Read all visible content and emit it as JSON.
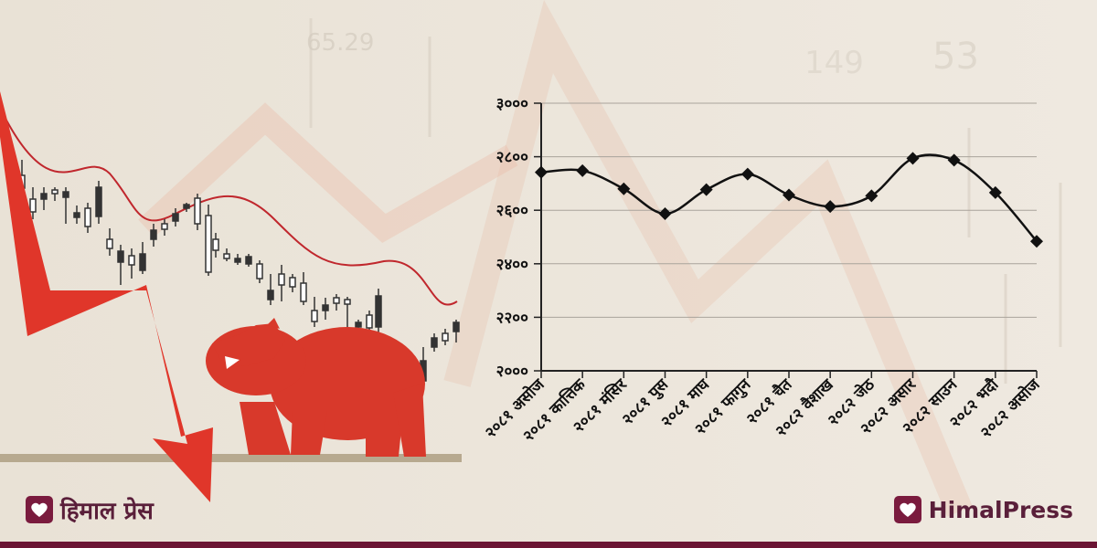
{
  "brand": {
    "left_text": "हिमाल प्रेस",
    "right_text": "HimalPress"
  },
  "colors": {
    "accent": "#6b1534",
    "arrow": "#e0362a",
    "bear": "#d8392b",
    "line": "#111111"
  },
  "illustration": {
    "icons": [
      "red-down-arrow",
      "bear",
      "candlestick-bars",
      "moving-average-line"
    ]
  },
  "chart_data": {
    "type": "line",
    "title": "",
    "xlabel": "",
    "ylabel": "",
    "ylim": [
      2000,
      3000
    ],
    "yticks": [
      3000,
      2800,
      2600,
      2400,
      2200,
      2000
    ],
    "ytick_labels": [
      "३०००",
      "२८००",
      "२६००",
      "२४००",
      "२२००",
      "२०००"
    ],
    "grid": true,
    "categories": [
      "२०८१ असोज",
      "२०८१ कात्तिक",
      "२०८१ मंसिर",
      "२०८१ पुस",
      "२०८१ माघ",
      "२०८१ फागुन",
      "२०८१ चैत",
      "२०८२ वैशाख",
      "२०८२ जेठ",
      "२०८२ असार",
      "२०८२ साउन",
      "२०८२ भदौ",
      "२०८२ असोज"
    ],
    "values": [
      2742,
      2748,
      2680,
      2587,
      2677,
      2735,
      2657,
      2614,
      2654,
      2794,
      2787,
      2666,
      2484
    ]
  }
}
